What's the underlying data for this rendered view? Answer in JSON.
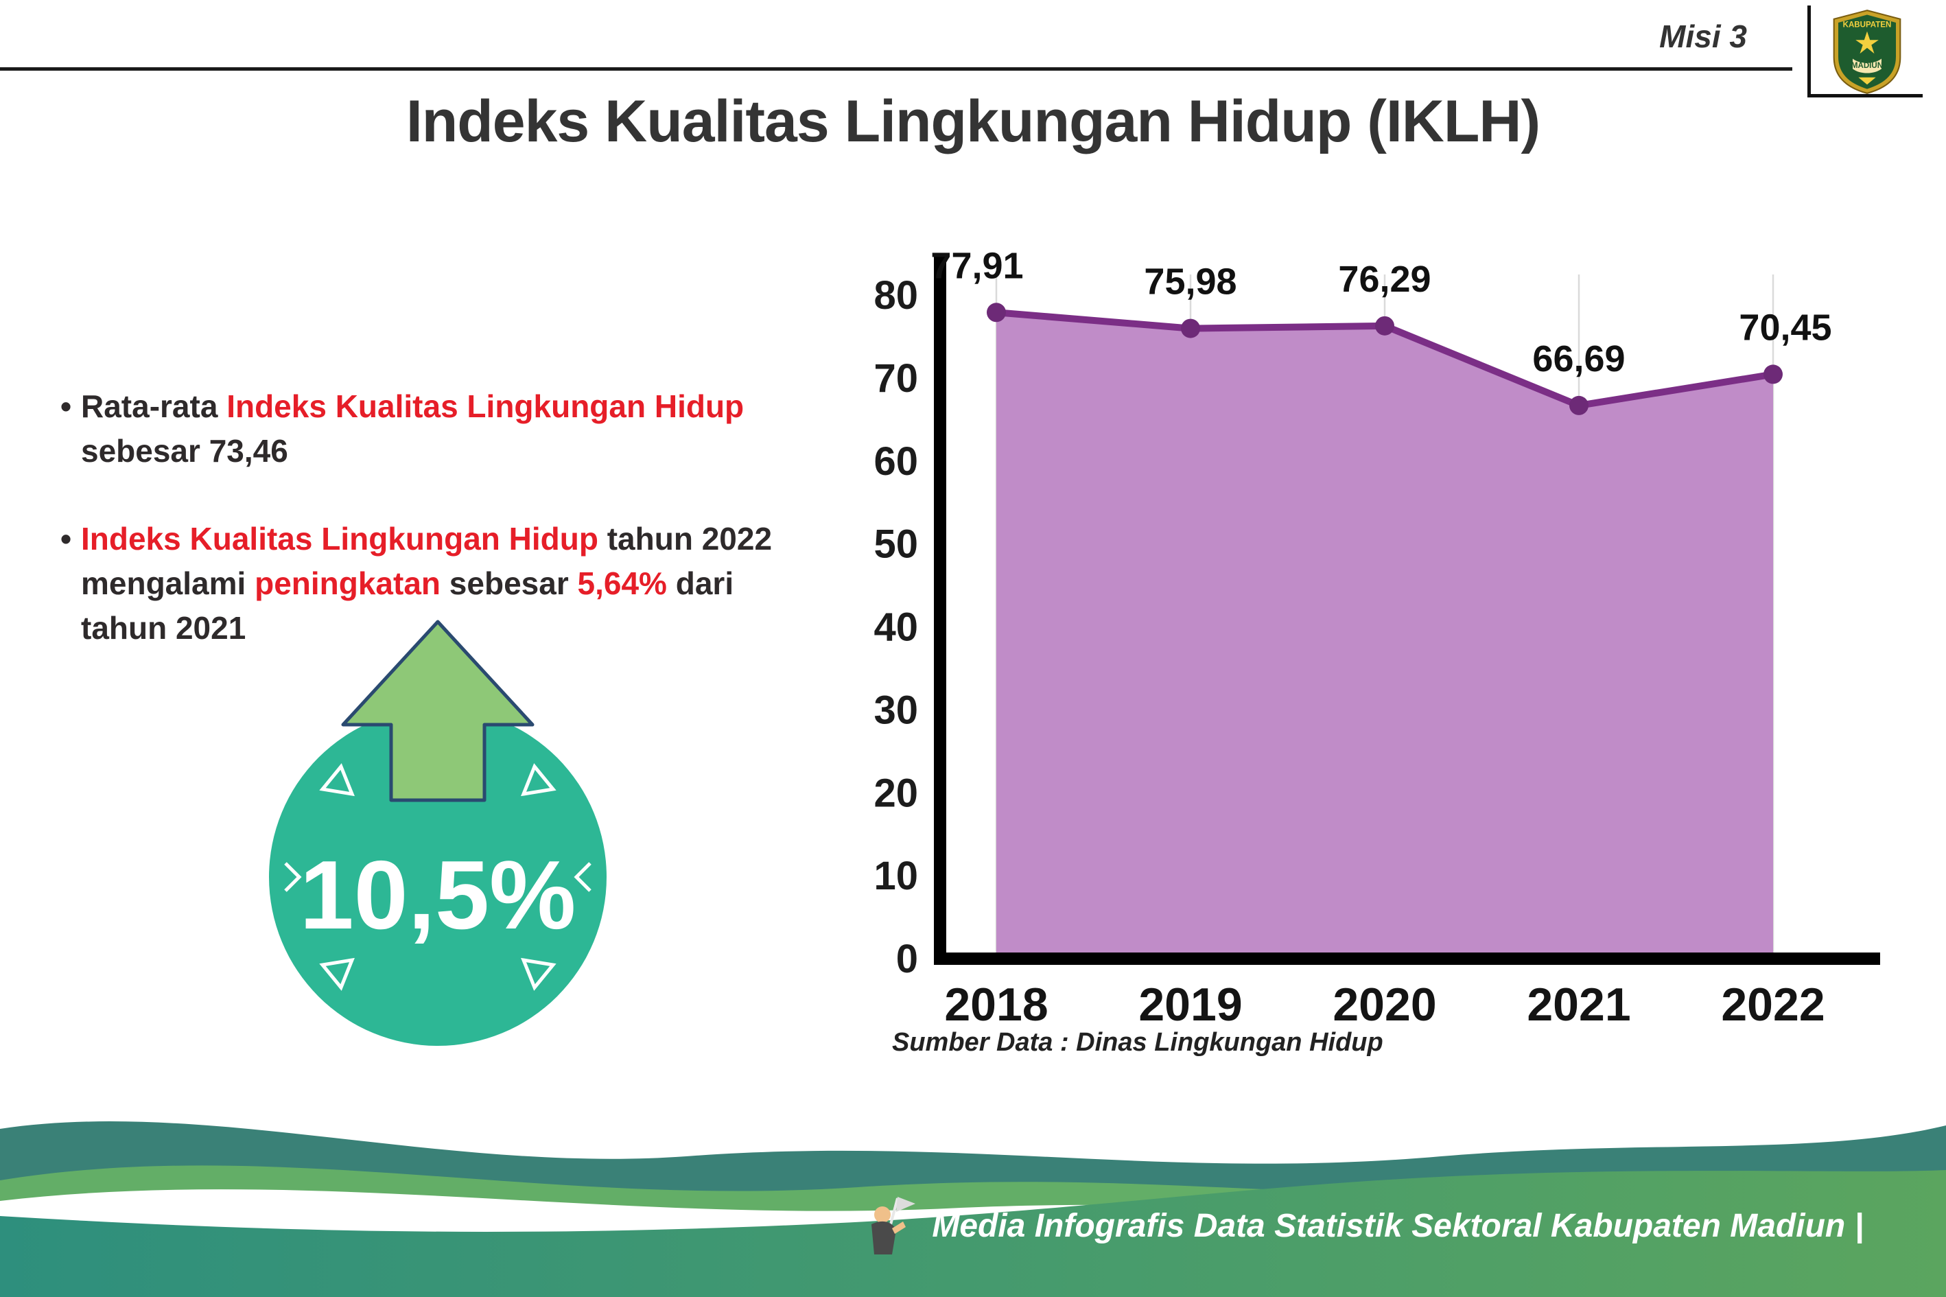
{
  "header": {
    "misi": "Misi 3",
    "logo": {
      "top_text": "KABUPATEN",
      "bottom_text": "MADIUN"
    }
  },
  "title": "Indeks Kualitas Lingkungan Hidup (IKLH)",
  "bullets": [
    {
      "segments": [
        {
          "text": "Rata-rata ",
          "color": "dark"
        },
        {
          "text": "Indeks Kualitas Lingkungan Hidup",
          "color": "red"
        },
        {
          "text": " sebesar 73,46",
          "color": "dark"
        }
      ]
    },
    {
      "segments": [
        {
          "text": "Indeks Kualitas Lingkungan Hidup",
          "color": "red"
        },
        {
          "text": " tahun 2022 mengalami ",
          "color": "dark"
        },
        {
          "text": "peningkatan",
          "color": "red"
        },
        {
          "text": " sebesar ",
          "color": "dark"
        },
        {
          "text": "5,64%",
          "color": "red"
        },
        {
          "text": " dari tahun 2021",
          "color": "dark"
        }
      ]
    }
  ],
  "badge": {
    "value": "10,5%"
  },
  "chart_data": {
    "type": "area",
    "categories": [
      "2018",
      "2019",
      "2020",
      "2021",
      "2022"
    ],
    "values": [
      77.91,
      75.98,
      76.29,
      66.69,
      70.45
    ],
    "point_labels": [
      "77,91",
      "75,98",
      "76,29",
      "66,69",
      "70,45"
    ],
    "title": "",
    "xlabel": "",
    "ylabel": "",
    "ylim": [
      0,
      80
    ],
    "yticks": [
      0,
      10,
      20,
      30,
      40,
      50,
      60,
      70,
      80
    ],
    "grid": "vertical-light",
    "legend": "none",
    "fill_color": "#c08cc8",
    "line_color": "#7b2e86",
    "point_color": "#6d2a77",
    "source": "Sumber Data : Dinas Lingkungan Hidup"
  },
  "footer": {
    "credit": "Media Infografis Data Statistik Sektoral Kabupaten Madiun |"
  },
  "colors": {
    "red": "#e61e28",
    "dark_text": "#2e2a2b",
    "badge_teal": "#2db795",
    "arrow_green": "#8ec877",
    "arrow_outline": "#2a4a70"
  }
}
